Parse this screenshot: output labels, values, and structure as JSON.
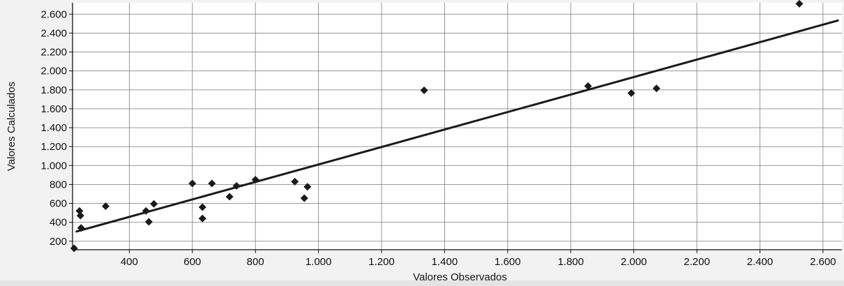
{
  "chart_data": {
    "type": "scatter",
    "xlabel": "Valores Observados",
    "ylabel": "Valores Calculados",
    "xlim": [
      220,
      2660
    ],
    "ylim": [
      110,
      2720
    ],
    "x_ticks": [
      400,
      600,
      800,
      1000,
      1200,
      1400,
      1600,
      1800,
      2000,
      2200,
      2400,
      2600
    ],
    "x_tick_labels": [
      "400",
      "600",
      "800",
      "1.000",
      "1.200",
      "1.400",
      "1.600",
      "1.800",
      "2.000",
      "2.200",
      "2.400",
      "2.600"
    ],
    "y_ticks": [
      200,
      400,
      600,
      800,
      1000,
      1200,
      1400,
      1600,
      1800,
      2000,
      2200,
      2400,
      2600
    ],
    "y_tick_labels": [
      "200",
      "400",
      "600",
      "800",
      "1.000",
      "1.200",
      "1.400",
      "1.600",
      "1.800",
      "2.000",
      "2.200",
      "2.400",
      "2.600"
    ],
    "grid": true,
    "legend": "none",
    "points": [
      {
        "x": 225,
        "y": 125
      },
      {
        "x": 242,
        "y": 520
      },
      {
        "x": 245,
        "y": 470
      },
      {
        "x": 247,
        "y": 340
      },
      {
        "x": 325,
        "y": 570
      },
      {
        "x": 453,
        "y": 520
      },
      {
        "x": 462,
        "y": 405
      },
      {
        "x": 478,
        "y": 595
      },
      {
        "x": 600,
        "y": 810
      },
      {
        "x": 632,
        "y": 560
      },
      {
        "x": 632,
        "y": 440
      },
      {
        "x": 662,
        "y": 810
      },
      {
        "x": 718,
        "y": 670
      },
      {
        "x": 740,
        "y": 785
      },
      {
        "x": 800,
        "y": 850
      },
      {
        "x": 925,
        "y": 830
      },
      {
        "x": 955,
        "y": 655
      },
      {
        "x": 965,
        "y": 775
      },
      {
        "x": 1335,
        "y": 1795
      },
      {
        "x": 1855,
        "y": 1840
      },
      {
        "x": 1992,
        "y": 1765
      },
      {
        "x": 2072,
        "y": 1815
      },
      {
        "x": 2525,
        "y": 2710
      }
    ],
    "trendline": {
      "x": [
        230,
        2650
      ],
      "y": [
        300,
        2535
      ]
    },
    "colors": {
      "marker": "#1a1a1a",
      "line": "#1a1a1a",
      "grid": "#8a8a8a",
      "plot_background": "#ffffff",
      "page_background": "#f2f2f2"
    }
  }
}
